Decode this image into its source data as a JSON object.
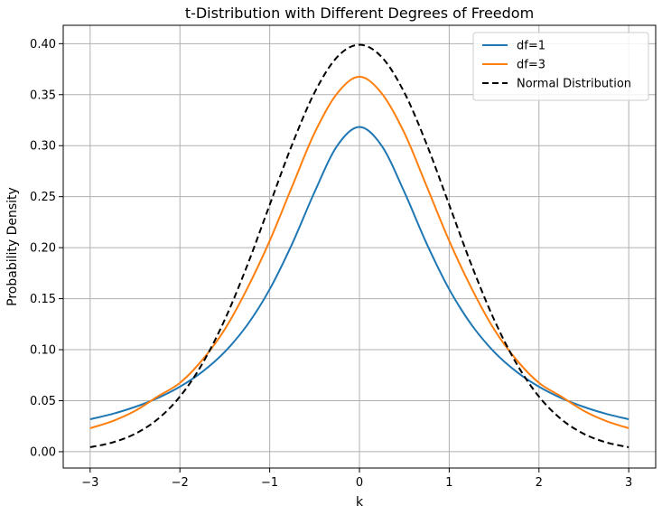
{
  "chart_data": {
    "type": "line",
    "title": "t-Distribution with Different Degrees of Freedom",
    "xlabel": "k",
    "ylabel": "Probability Density",
    "xlim": [
      -3.3,
      3.3
    ],
    "ylim": [
      -0.016,
      0.418
    ],
    "xticks": [
      -3,
      -2,
      -1,
      0,
      1,
      2,
      3
    ],
    "xtick_labels": [
      "−3",
      "−2",
      "−1",
      "0",
      "1",
      "2",
      "3"
    ],
    "yticks": [
      0.0,
      0.05,
      0.1,
      0.15,
      0.2,
      0.25,
      0.3,
      0.35,
      0.4
    ],
    "ytick_labels": [
      "0.00",
      "0.05",
      "0.10",
      "0.15",
      "0.20",
      "0.25",
      "0.30",
      "0.35",
      "0.40"
    ],
    "grid": true,
    "legend_position": "top-right",
    "series": [
      {
        "name": "df=1",
        "color": "#1f77b4",
        "style": "solid",
        "x": [
          -3.0,
          -2.75,
          -2.5,
          -2.25,
          -2.0,
          -1.75,
          -1.5,
          -1.25,
          -1.0,
          -0.75,
          -0.5,
          -0.25,
          0.0,
          0.25,
          0.5,
          0.75,
          1.0,
          1.25,
          1.5,
          1.75,
          2.0,
          2.25,
          2.5,
          2.75,
          3.0
        ],
        "y": [
          0.0318,
          0.0371,
          0.0439,
          0.0525,
          0.0637,
          0.0784,
          0.0979,
          0.1242,
          0.1592,
          0.2037,
          0.2546,
          0.2996,
          0.3183,
          0.2996,
          0.2546,
          0.2037,
          0.1592,
          0.1242,
          0.0979,
          0.0784,
          0.0637,
          0.0525,
          0.0439,
          0.0371,
          0.0318
        ]
      },
      {
        "name": "df=3",
        "color": "#ff7f0e",
        "style": "solid",
        "x": [
          -3.0,
          -2.75,
          -2.5,
          -2.25,
          -2.0,
          -1.75,
          -1.5,
          -1.25,
          -1.0,
          -0.75,
          -0.5,
          -0.25,
          0.0,
          0.25,
          0.5,
          0.75,
          1.0,
          1.25,
          1.5,
          1.75,
          2.0,
          2.25,
          2.5,
          2.75,
          3.0
        ],
        "y": [
          0.023,
          0.03,
          0.04,
          0.054,
          0.0675,
          0.09,
          0.12,
          0.16,
          0.2067,
          0.26,
          0.3125,
          0.351,
          0.3676,
          0.351,
          0.3125,
          0.26,
          0.2067,
          0.16,
          0.12,
          0.09,
          0.0675,
          0.054,
          0.04,
          0.03,
          0.023
        ]
      },
      {
        "name": "Normal Distribution",
        "color": "#000000",
        "style": "dashed",
        "x": [
          -3.0,
          -2.75,
          -2.5,
          -2.25,
          -2.0,
          -1.75,
          -1.5,
          -1.25,
          -1.0,
          -0.75,
          -0.5,
          -0.25,
          0.0,
          0.25,
          0.5,
          0.75,
          1.0,
          1.25,
          1.5,
          1.75,
          2.0,
          2.25,
          2.5,
          2.75,
          3.0
        ],
        "y": [
          0.0044,
          0.0091,
          0.0175,
          0.0317,
          0.054,
          0.0863,
          0.1295,
          0.1826,
          0.242,
          0.3011,
          0.3521,
          0.3867,
          0.3989,
          0.3867,
          0.3521,
          0.3011,
          0.242,
          0.1826,
          0.1295,
          0.0863,
          0.054,
          0.0317,
          0.0175,
          0.0091,
          0.0044
        ]
      }
    ]
  }
}
